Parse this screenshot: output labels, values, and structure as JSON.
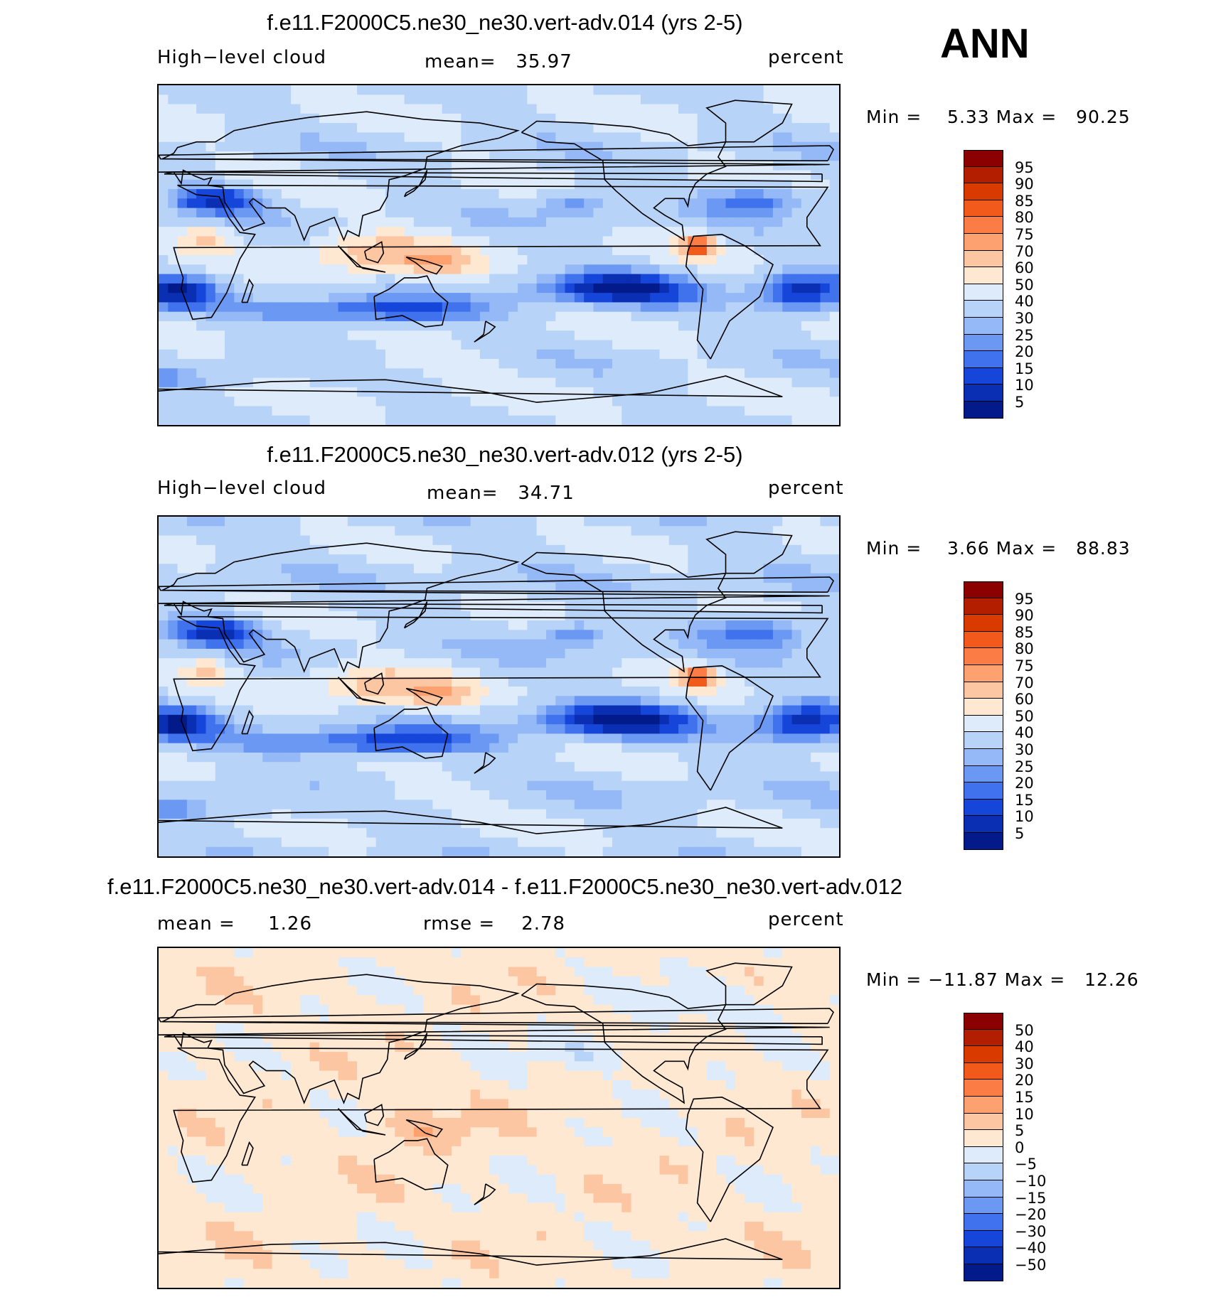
{
  "season_label": "ANN",
  "panels": [
    {
      "title": "f.e11.F2000C5.ne30_ne30.vert-adv.014 (yrs 2-5)",
      "left_label": "High−level cloud",
      "mean_text": "mean=   35.97",
      "units": "percent",
      "minmax": "Min =    5.33 Max =   90.25",
      "variant": "a"
    },
    {
      "title": "f.e11.F2000C5.ne30_ne30.vert-adv.012 (yrs 2-5)",
      "left_label": "High−level cloud",
      "mean_text": "mean=   34.71",
      "units": "percent",
      "minmax": "Min =    3.66 Max =   88.83",
      "variant": "b"
    },
    {
      "title": "f.e11.F2000C5.ne30_ne30.vert-adv.014 - f.e11.F2000C5.ne30_ne30.vert-adv.012",
      "left_label": "mean =     1.26",
      "mean_text": "rmse =    2.78",
      "units": "percent",
      "minmax": "Min = −11.87 Max =   12.26",
      "variant": "diff"
    }
  ],
  "colorbar_field": {
    "labels": [
      "95",
      "90",
      "85",
      "80",
      "75",
      "70",
      "60",
      "50",
      "40",
      "30",
      "25",
      "20",
      "15",
      "10",
      "5"
    ],
    "colors": [
      "#8b0000",
      "#b31e00",
      "#d93a00",
      "#f25a1c",
      "#fb7d45",
      "#fca16f",
      "#fdc6a2",
      "#fee8d2",
      "#deebfa",
      "#b8d3f8",
      "#94b9f6",
      "#6a98f3",
      "#3f72ec",
      "#1546d9",
      "#0a2fb3",
      "#031b8a"
    ]
  },
  "colorbar_diff": {
    "labels": [
      "50",
      "40",
      "30",
      "20",
      "15",
      "10",
      "5",
      "0",
      "−5",
      "−10",
      "−15",
      "−20",
      "−30",
      "−40",
      "−50"
    ],
    "colors": [
      "#8b0000",
      "#b31e00",
      "#d93a00",
      "#f25a1c",
      "#fb7d45",
      "#fca16f",
      "#fdc6a2",
      "#fee8d2",
      "#deebfa",
      "#b8d3f8",
      "#94b9f6",
      "#6a98f3",
      "#3f72ec",
      "#1546d9",
      "#0a2fb3",
      "#031b8a"
    ]
  }
}
